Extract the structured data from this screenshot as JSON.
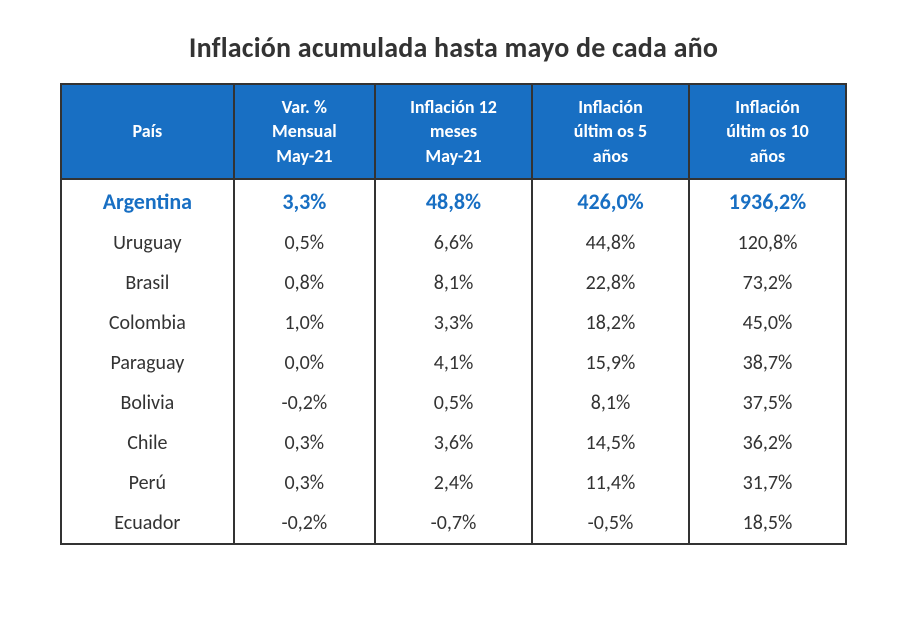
{
  "title": "Inflación acumulada hasta mayo de cada año",
  "table": {
    "type": "table",
    "header_bg": "#186fc3",
    "header_fg": "#ffffff",
    "border_color": "#333333",
    "highlight_color": "#186fc3",
    "title_fontsize": 28,
    "header_fontsize": 18,
    "cell_fontsize": 20,
    "highlight_fontsize": 22,
    "col_widths_pct": [
      22,
      18,
      20,
      20,
      20
    ],
    "columns": [
      "País",
      "Var. %\nMensual\nMay-21",
      "Inflación 12\nmeses\nMay-21",
      "Inflación\núltim os 5\naños",
      "Inflación\núltim os 10\naños"
    ],
    "rows": [
      {
        "highlight": true,
        "cells": [
          "Argentina",
          "3,3%",
          "48,8%",
          "426,0%",
          "1936,2%"
        ]
      },
      {
        "highlight": false,
        "cells": [
          "Uruguay",
          "0,5%",
          "6,6%",
          "44,8%",
          "120,8%"
        ]
      },
      {
        "highlight": false,
        "cells": [
          "Brasil",
          "0,8%",
          "8,1%",
          "22,8%",
          "73,2%"
        ]
      },
      {
        "highlight": false,
        "cells": [
          "Colombia",
          "1,0%",
          "3,3%",
          "18,2%",
          "45,0%"
        ]
      },
      {
        "highlight": false,
        "cells": [
          "Paraguay",
          "0,0%",
          "4,1%",
          "15,9%",
          "38,7%"
        ]
      },
      {
        "highlight": false,
        "cells": [
          "Bolivia",
          "-0,2%",
          "0,5%",
          "8,1%",
          "37,5%"
        ]
      },
      {
        "highlight": false,
        "cells": [
          "Chile",
          "0,3%",
          "3,6%",
          "14,5%",
          "36,2%"
        ]
      },
      {
        "highlight": false,
        "cells": [
          "Perú",
          "0,3%",
          "2,4%",
          "11,4%",
          "31,7%"
        ]
      },
      {
        "highlight": false,
        "cells": [
          "Ecuador",
          "-0,2%",
          "-0,7%",
          "-0,5%",
          "18,5%"
        ]
      }
    ]
  }
}
